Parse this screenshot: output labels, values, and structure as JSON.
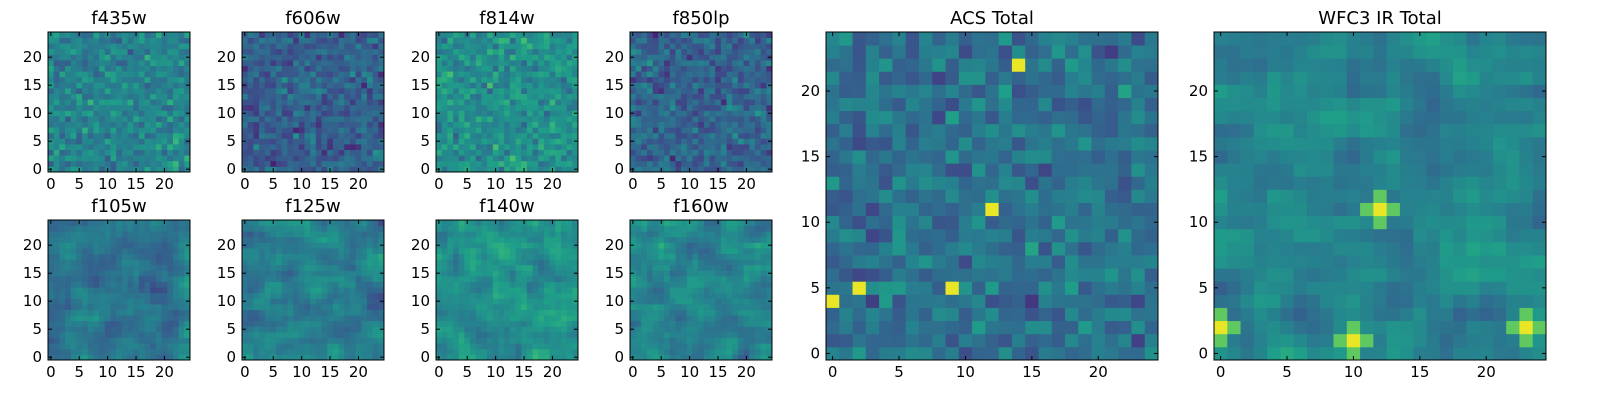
{
  "chart_data": [
    {
      "type": "heatmap",
      "title": "f435w",
      "xticks": [
        "0",
        "5",
        "10",
        "15",
        "20"
      ],
      "yticks": [
        "0",
        "5",
        "10",
        "15",
        "20"
      ],
      "xlim": [
        -0.5,
        24.5
      ],
      "ylim": [
        -0.5,
        24.5
      ],
      "grid": [
        25,
        25
      ],
      "colormap": "viridis",
      "character": "pixel noise, mean ~0.45"
    },
    {
      "type": "heatmap",
      "title": "f606w",
      "xticks": [
        "0",
        "5",
        "10",
        "15",
        "20"
      ],
      "yticks": [
        "0",
        "5",
        "10",
        "15",
        "20"
      ],
      "xlim": [
        -0.5,
        24.5
      ],
      "ylim": [
        -0.5,
        24.5
      ],
      "grid": [
        25,
        25
      ],
      "colormap": "viridis",
      "character": "pixel noise, mean ~0.30"
    },
    {
      "type": "heatmap",
      "title": "f814w",
      "xticks": [
        "0",
        "5",
        "10",
        "15",
        "20"
      ],
      "yticks": [
        "0",
        "5",
        "10",
        "15",
        "20"
      ],
      "xlim": [
        -0.5,
        24.5
      ],
      "ylim": [
        -0.5,
        24.5
      ],
      "grid": [
        25,
        25
      ],
      "colormap": "viridis",
      "character": "pixel noise, mean ~0.50"
    },
    {
      "type": "heatmap",
      "title": "f850lp",
      "xticks": [
        "0",
        "5",
        "10",
        "15",
        "20"
      ],
      "yticks": [
        "0",
        "5",
        "10",
        "15",
        "20"
      ],
      "xlim": [
        -0.5,
        24.5
      ],
      "ylim": [
        -0.5,
        24.5
      ],
      "grid": [
        25,
        25
      ],
      "colormap": "viridis",
      "character": "pixel noise, mean ~0.32"
    },
    {
      "type": "heatmap",
      "title": "f105w",
      "xticks": [
        "0",
        "5",
        "10",
        "15",
        "20"
      ],
      "yticks": [
        "0",
        "5",
        "10",
        "15",
        "20"
      ],
      "xlim": [
        -0.5,
        24.5
      ],
      "ylim": [
        -0.5,
        24.5
      ],
      "grid": [
        25,
        25
      ],
      "colormap": "viridis",
      "character": "smooth noise, mean ~0.40"
    },
    {
      "type": "heatmap",
      "title": "f125w",
      "xticks": [
        "0",
        "5",
        "10",
        "15",
        "20"
      ],
      "yticks": [
        "0",
        "5",
        "10",
        "15",
        "20"
      ],
      "xlim": [
        -0.5,
        24.5
      ],
      "ylim": [
        -0.5,
        24.5
      ],
      "grid": [
        25,
        25
      ],
      "colormap": "viridis",
      "character": "smooth noise, mean ~0.42"
    },
    {
      "type": "heatmap",
      "title": "f140w",
      "xticks": [
        "0",
        "5",
        "10",
        "15",
        "20"
      ],
      "yticks": [
        "0",
        "5",
        "10",
        "15",
        "20"
      ],
      "xlim": [
        -0.5,
        24.5
      ],
      "ylim": [
        -0.5,
        24.5
      ],
      "grid": [
        25,
        25
      ],
      "colormap": "viridis",
      "character": "smooth noise, mean ~0.50"
    },
    {
      "type": "heatmap",
      "title": "f160w",
      "xticks": [
        "0",
        "5",
        "10",
        "15",
        "20"
      ],
      "yticks": [
        "0",
        "5",
        "10",
        "15",
        "20"
      ],
      "xlim": [
        -0.5,
        24.5
      ],
      "ylim": [
        -0.5,
        24.5
      ],
      "grid": [
        25,
        25
      ],
      "colormap": "viridis",
      "character": "smooth noise, mean ~0.45"
    },
    {
      "type": "heatmap",
      "title": "ACS Total",
      "xticks": [
        "0",
        "5",
        "10",
        "15",
        "20"
      ],
      "yticks": [
        "0",
        "5",
        "10",
        "15",
        "20"
      ],
      "xlim": [
        -0.5,
        24.5
      ],
      "ylim": [
        -0.5,
        24.5
      ],
      "grid": [
        25,
        25
      ],
      "colormap": "viridis",
      "character": "pixel noise, mean ~0.38",
      "hotspots": [
        {
          "x": 14,
          "y": 22
        },
        {
          "x": 0,
          "y": 4
        },
        {
          "x": 9,
          "y": 5
        },
        {
          "x": 12,
          "y": 11
        },
        {
          "x": 2,
          "y": 5
        }
      ]
    },
    {
      "type": "heatmap",
      "title": "WFC3 IR Total",
      "xticks": [
        "0",
        "5",
        "10",
        "15",
        "20"
      ],
      "yticks": [
        "0",
        "5",
        "10",
        "15",
        "20"
      ],
      "xlim": [
        -0.5,
        24.5
      ],
      "ylim": [
        -0.5,
        24.5
      ],
      "grid": [
        25,
        25
      ],
      "colormap": "viridis",
      "character": "smooth noise, mean ~0.45",
      "hotspots": [
        {
          "x": 12,
          "y": 11
        },
        {
          "x": 0,
          "y": 2
        },
        {
          "x": 23,
          "y": 2
        },
        {
          "x": 10,
          "y": 1
        }
      ]
    }
  ]
}
